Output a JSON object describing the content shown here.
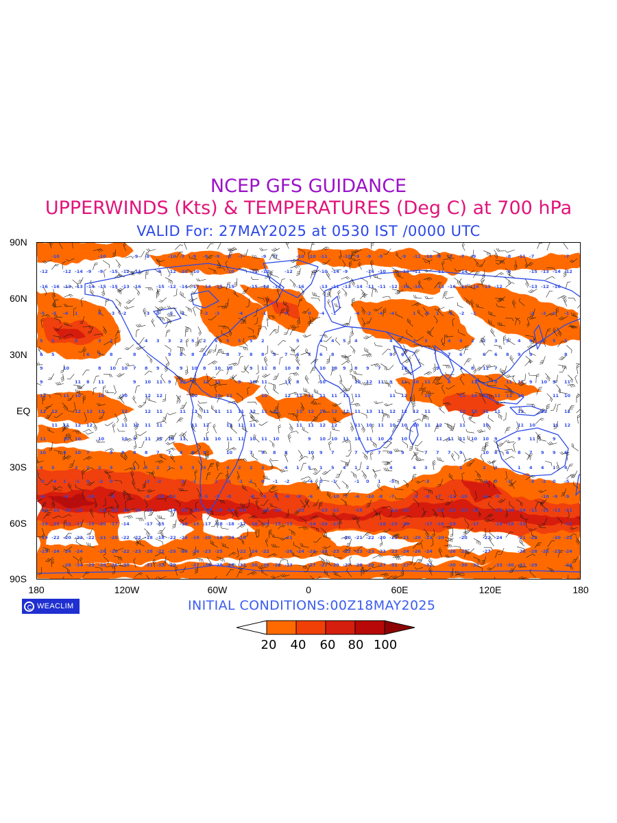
{
  "header": {
    "line1": "NCEP GFS GUIDANCE",
    "line2": "UPPERWINDS (Kts) & TEMPERATURES (Deg C) at 700 hPa",
    "line3": "VALID For: 27MAY2025 at 0530 IST /0000 UTC"
  },
  "map": {
    "lat_labels": [
      "90N",
      "60N",
      "30N",
      "EQ",
      "30S",
      "60S",
      "90S"
    ],
    "lon_labels": [
      "180",
      "120W",
      "60W",
      "0",
      "60E",
      "120E",
      "180"
    ],
    "colors": {
      "coast": "#2b48e8",
      "temp_text": "#2b48e8",
      "barb": "#000000",
      "shade_20_40": "#ff6a00",
      "shade_40_60": "#f04008",
      "shade_60_80": "#d61e0e",
      "shade_80_100": "#b80808",
      "shade_100_plus": "#8c0404"
    }
  },
  "branding": {
    "logo_text": "WEACLIM",
    "logo_icon": "copyright-c-icon"
  },
  "footer": {
    "initial_conditions": "INITIAL  CONDITIONS:00Z18MAY2025"
  },
  "legend": {
    "labels": [
      "20",
      "40",
      "60",
      "80",
      "100"
    ],
    "colors": [
      "#ffffff",
      "#ff6a00",
      "#f04008",
      "#d61e0e",
      "#b80808",
      "#8c0404"
    ]
  }
}
